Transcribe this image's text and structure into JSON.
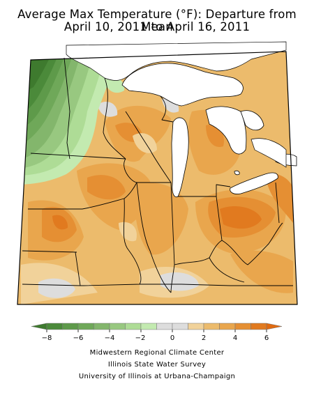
{
  "title": {
    "line1": "Average Max Temperature (°F): Departure from Mean",
    "line2": "April 10, 2011 to April 16, 2011"
  },
  "legend": {
    "tick_labels": [
      "−8",
      "−6",
      "−4",
      "−2",
      "0",
      "2",
      "4",
      "6"
    ],
    "bins": [
      {
        "range": "below -8",
        "color": "#3e7a2e"
      },
      {
        "range": "-8 to -7",
        "color": "#4b8a3a"
      },
      {
        "range": "-7 to -6",
        "color": "#5e9a4a"
      },
      {
        "range": "-6 to -5",
        "color": "#6fa859"
      },
      {
        "range": "-5 to -4",
        "color": "#83b66c"
      },
      {
        "range": "-4 to -3",
        "color": "#98c880"
      },
      {
        "range": "-3 to -2",
        "color": "#aedc96"
      },
      {
        "range": "-2 to -1",
        "color": "#c3eab0"
      },
      {
        "range": "-1 to 0",
        "color": "#dddddd"
      },
      {
        "range": "0 to 1",
        "color": "#dddddd"
      },
      {
        "range": "1 to 2",
        "color": "#f1d29a"
      },
      {
        "range": "2 to 3",
        "color": "#ecbb6c"
      },
      {
        "range": "3 to 4",
        "color": "#e9a64d"
      },
      {
        "range": "4 to 5",
        "color": "#e58f33"
      },
      {
        "range": "5 to 6",
        "color": "#e17a1f"
      },
      {
        "range": "above 6",
        "color": "#e06a10"
      }
    ]
  },
  "credits": {
    "line1": "Midwestern Regional Climate Center",
    "line2": "Illinois State Water Survey",
    "line3": "University of Illinois at Urbana-Champaign"
  }
}
